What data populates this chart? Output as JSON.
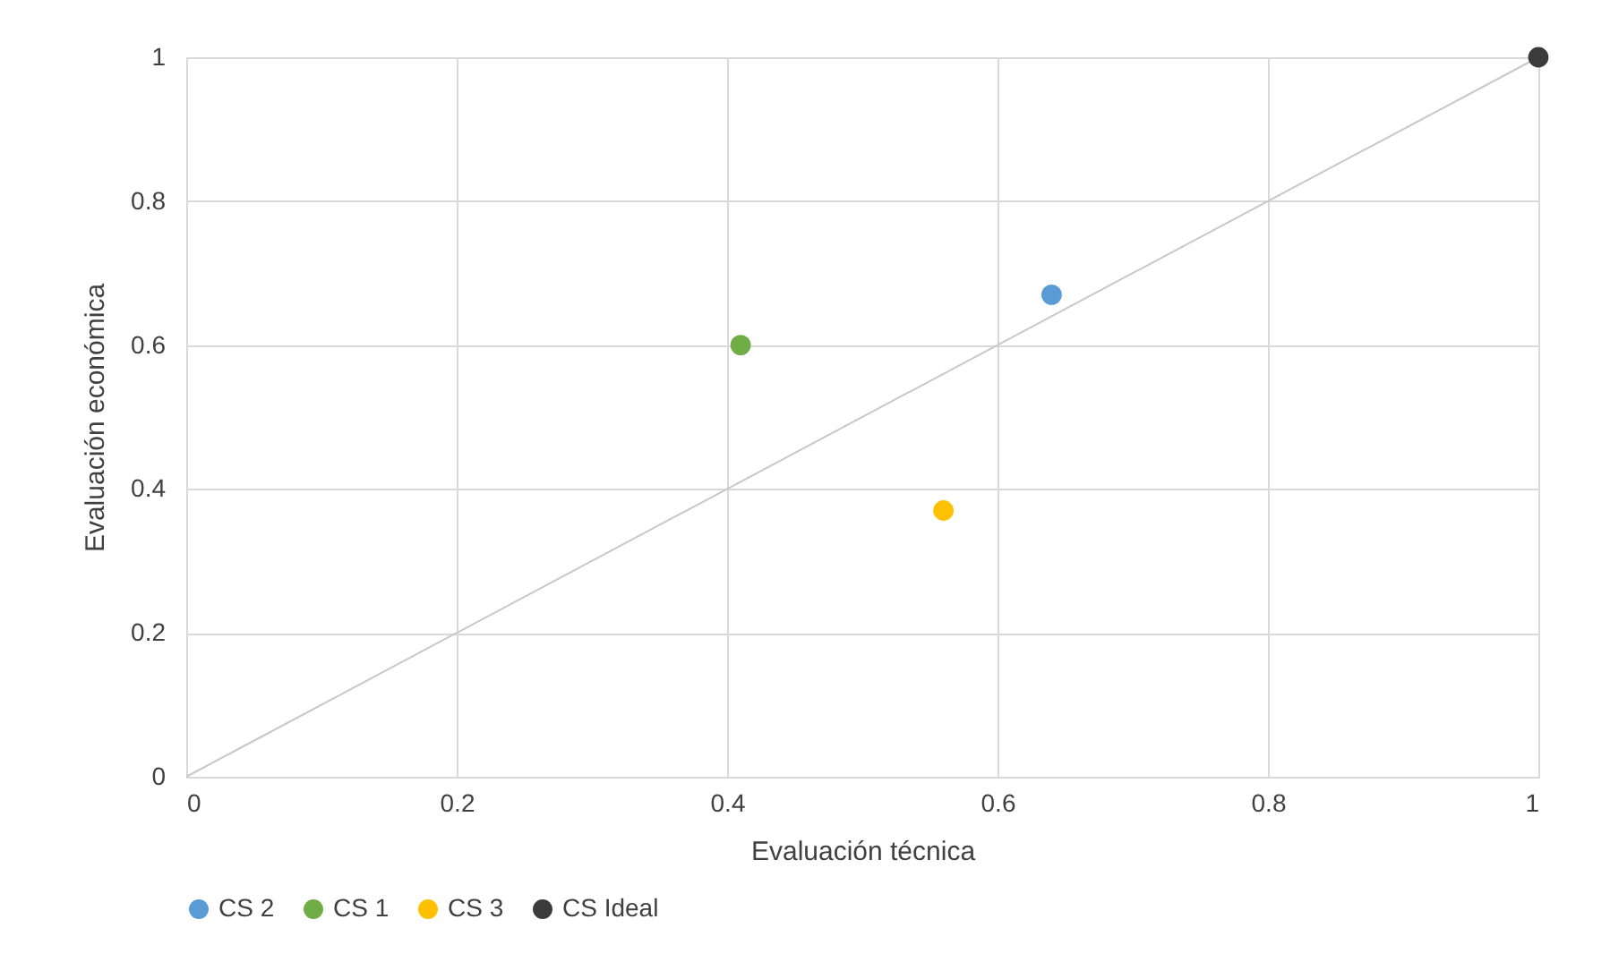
{
  "chart_data": {
    "type": "scatter",
    "xlabel": "Evaluación técnica",
    "ylabel": "Evaluación económica",
    "xlim": [
      0,
      1
    ],
    "ylim": [
      0,
      1
    ],
    "xticks": [
      0,
      0.2,
      0.4,
      0.6,
      0.8,
      1
    ],
    "yticks": [
      0,
      0.2,
      0.4,
      0.6,
      0.8,
      1
    ],
    "grid": true,
    "legend": "bottom",
    "series": [
      {
        "name": "CS 2",
        "color": "#5b9bd5",
        "marker": "circle",
        "x": [
          0.64
        ],
        "values": [
          0.67
        ]
      },
      {
        "name": "CS 1",
        "color": "#70ad47",
        "marker": "circle",
        "x": [
          0.41
        ],
        "values": [
          0.6
        ]
      },
      {
        "name": "CS 3",
        "color": "#ffc000",
        "marker": "circle",
        "x": [
          0.56
        ],
        "values": [
          0.37
        ]
      },
      {
        "name": "CS Ideal",
        "color": "#3b3b3b",
        "marker": "circle",
        "x": [
          1
        ],
        "values": [
          1
        ]
      },
      {
        "type": "line",
        "color": "#c8c8c8",
        "marker": "none",
        "x": [
          0,
          1
        ],
        "values": [
          0,
          1
        ]
      }
    ]
  }
}
